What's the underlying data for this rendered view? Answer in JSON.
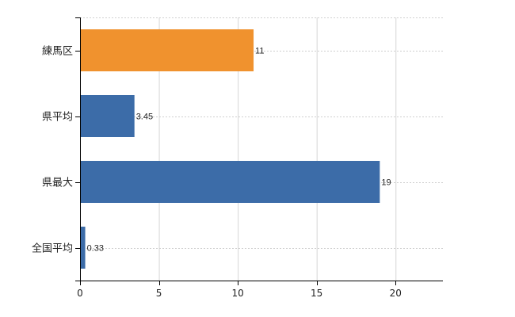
{
  "chart_data": {
    "type": "bar",
    "orientation": "horizontal",
    "categories": [
      "練馬区",
      "県平均",
      "県最大",
      "全国平均"
    ],
    "values": [
      11,
      3.45,
      19,
      0.33
    ],
    "data_labels": [
      "11",
      "3.45",
      "19",
      "0.33"
    ],
    "bar_colors": [
      "#f0922e",
      "#3c6ca8",
      "#3c6ca8",
      "#3c6ca8"
    ],
    "highlight_color": "#f0922e",
    "base_color": "#3c6ca8",
    "xlim": [
      0,
      23
    ],
    "xticks": [
      0,
      5,
      10,
      15,
      20
    ],
    "grid": true,
    "grid_style": "dotted",
    "title": "",
    "xlabel": "",
    "ylabel": ""
  }
}
